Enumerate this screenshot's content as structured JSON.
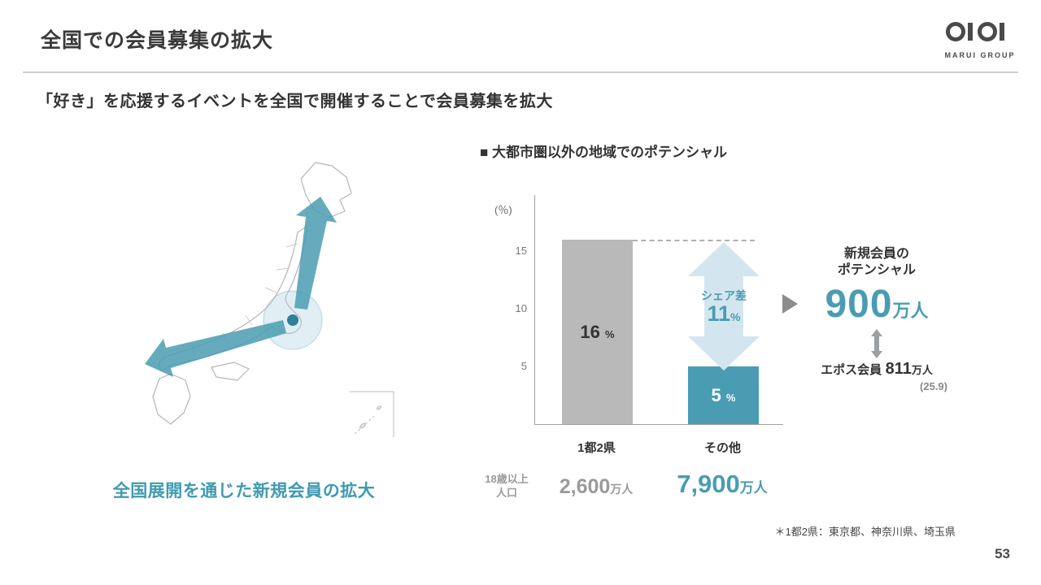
{
  "header": {
    "title": "全国での会員募集の拡大",
    "logo_text": "OIOI",
    "logo_company": "MARUI GROUP"
  },
  "subtitle": "「好き」を応援するイベントを全国で開催することで会員募集を拡大",
  "map": {
    "caption": "全国展開を通じた新規会員の拡大"
  },
  "chart": {
    "heading": "■ 大都市圏以外の地域でのポテンシャル",
    "y_unit": "(％)",
    "ticks": [
      "15",
      "10",
      "5"
    ],
    "bars": [
      {
        "value": "16",
        "unit": "%",
        "label": "1都2県"
      },
      {
        "value": "5",
        "unit": "%",
        "label": "その他"
      }
    ],
    "share_gap": {
      "label": "シェア差",
      "value": "11",
      "unit": "%"
    },
    "population": {
      "row_label_line1": "18歳以上",
      "row_label_line2": "人口",
      "values": [
        {
          "value": "2,600",
          "unit": "万人"
        },
        {
          "value": "7,900",
          "unit": "万人"
        }
      ]
    }
  },
  "potential": {
    "heading_line1": "新規会員の",
    "heading_line2": "ポテンシャル",
    "value": "900",
    "unit": "万人",
    "epos_label": "エポス会員",
    "epos_value": "811",
    "epos_unit": "万人",
    "epos_note": "(25.9)"
  },
  "footnote": "＊1都2県：東京都、神奈川県、埼玉県",
  "page_number": "53",
  "colors": {
    "accent_teal": "#4a9cb2",
    "bar_gray": "#b9b9b9",
    "gap_arrow_fill": "#d3e6ef",
    "caption_teal": "#3f9ab1"
  },
  "chart_data": {
    "type": "bar",
    "title": "大都市圏以外の地域でのポテンシャル",
    "categories": [
      "1都2県",
      "その他"
    ],
    "values": [
      16,
      5
    ],
    "value_unit": "%",
    "xlabel": "",
    "ylabel": "(％)",
    "ylim": [
      0,
      17
    ],
    "yticks": [
      5,
      10,
      15
    ],
    "grid": false,
    "legend": "none",
    "bar_colors": [
      "#b9b9b9",
      "#4a9cb2"
    ],
    "annotations": [
      "シェア差 11%（16% と 5% の差）",
      "新規会員のポテンシャル 900万人",
      "エポス会員 811万人 (25.9)",
      "18歳以上人口：1都2県 2,600万人、その他 7,900万人",
      "＊1都2県：東京都、神奈川県、埼玉県"
    ]
  }
}
